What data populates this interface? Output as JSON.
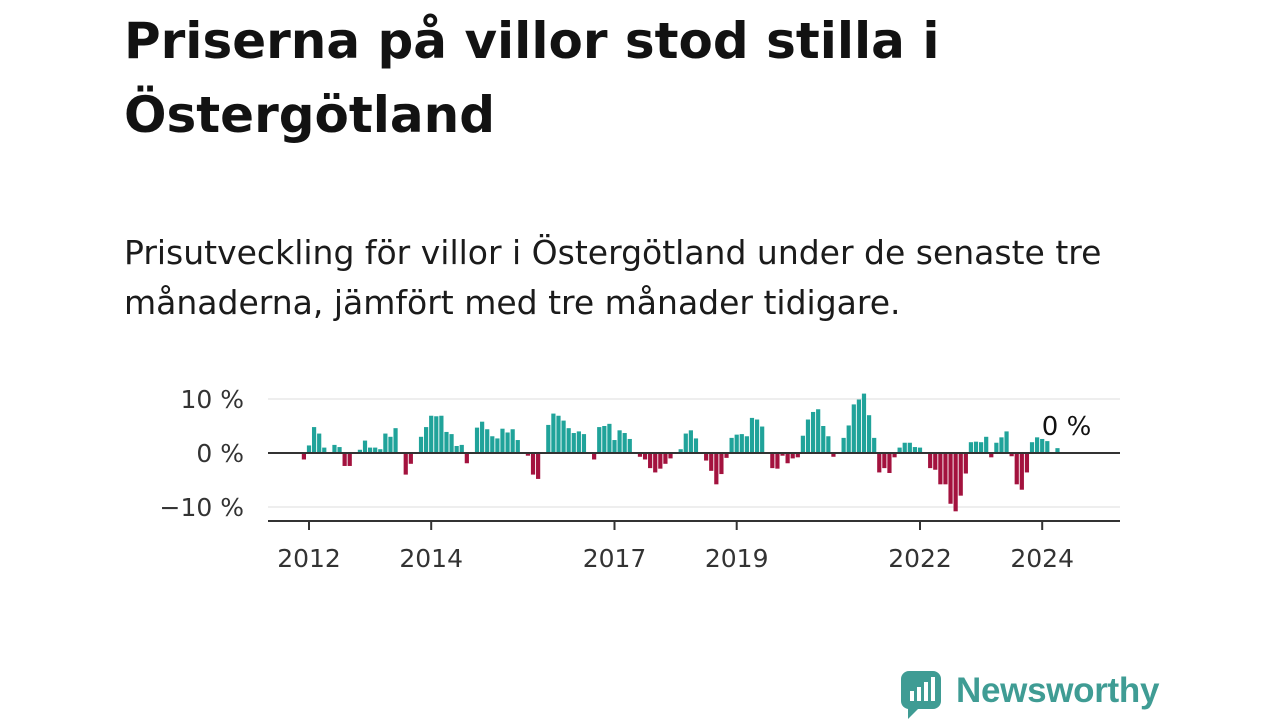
{
  "header": {
    "title": "Priserna på villor stod stilla i Östergötland",
    "subtitle": "Prisutveckling för villor i Östergötland under de senaste tre månaderna, jämfört med tre månader tidigare."
  },
  "brand": {
    "name": "Newsworthy",
    "color": "#3f9c94"
  },
  "colors": {
    "positive": "#20a39a",
    "negative": "#a3123e",
    "axis": "#333333",
    "grid": "#dddddd"
  },
  "chart_data": {
    "type": "bar",
    "title": "",
    "xlabel": "",
    "ylabel": "",
    "ylim": [
      -12.5,
      11
    ],
    "y_ticks": [
      {
        "value": 10,
        "label": "10 %"
      },
      {
        "value": 0,
        "label": "0 %"
      },
      {
        "value": -10,
        "label": "−10 %"
      }
    ],
    "x_ticks": [
      {
        "value": 2012,
        "label": "2012"
      },
      {
        "value": 2014,
        "label": "2014"
      },
      {
        "value": 2017,
        "label": "2017"
      },
      {
        "value": 2019,
        "label": "2019"
      },
      {
        "value": 2022,
        "label": "2022"
      },
      {
        "value": 2024,
        "label": "2024"
      }
    ],
    "xlim": [
      2011.5,
      2025.3
    ],
    "grid": true,
    "last_value_label": "0 %",
    "start": "2011-12",
    "frequency": "monthly",
    "values": [
      -1.2,
      1.4,
      4.8,
      3.6,
      1.0,
      0,
      1.5,
      1.1,
      -2.4,
      -2.4,
      0,
      0.6,
      2.3,
      1.0,
      1.0,
      0.7,
      3.6,
      3.0,
      4.6,
      0,
      -4.0,
      -2.0,
      0,
      3.0,
      4.8,
      6.9,
      6.8,
      6.9,
      3.9,
      3.5,
      1.3,
      1.5,
      -1.9,
      0,
      4.7,
      5.8,
      4.4,
      3.1,
      2.7,
      4.5,
      3.8,
      4.4,
      2.4,
      0,
      -0.5,
      -4.0,
      -4.8,
      0,
      5.2,
      7.3,
      6.9,
      6.0,
      4.6,
      3.7,
      4.0,
      3.5,
      0,
      -1.2,
      4.8,
      5.0,
      5.4,
      2.4,
      4.2,
      3.7,
      2.6,
      0,
      -0.7,
      -1.2,
      -2.8,
      -3.6,
      -2.9,
      -2.0,
      -1.0,
      0,
      0.7,
      3.6,
      4.2,
      2.7,
      0,
      -1.4,
      -3.3,
      -5.8,
      -3.9,
      -0.9,
      2.8,
      3.4,
      3.5,
      3.1,
      6.5,
      6.2,
      4.9,
      0,
      -2.8,
      -2.9,
      -0.5,
      -1.9,
      -1.0,
      -0.8,
      3.2,
      6.2,
      7.6,
      8.1,
      5.0,
      3.1,
      -0.7,
      0,
      2.8,
      5.1,
      9.0,
      9.9,
      11.0,
      7.0,
      2.8,
      -3.6,
      -2.8,
      -3.7,
      -0.8,
      1.0,
      1.9,
      1.9,
      1.1,
      1.0,
      0,
      -2.8,
      -3.1,
      -5.8,
      -5.8,
      -9.4,
      -10.8,
      -7.9,
      -3.8,
      2.0,
      2.1,
      2.0,
      3.0,
      -0.8,
      1.9,
      2.9,
      4.0,
      -0.6,
      -5.8,
      -6.8,
      -3.6,
      2.0,
      2.9,
      2.6,
      2.2,
      0,
      0.9,
      0
    ]
  }
}
